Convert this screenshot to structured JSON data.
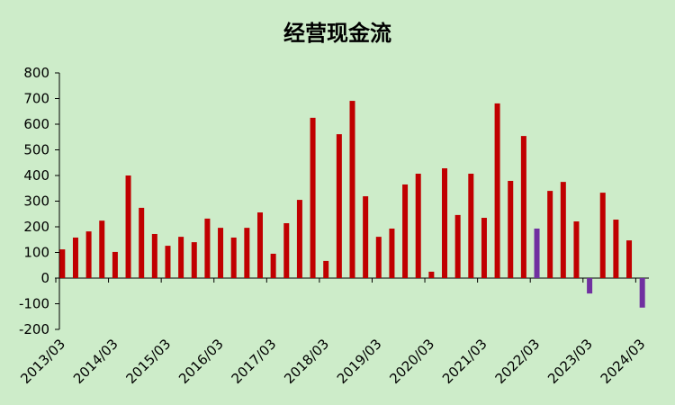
{
  "chart_data": {
    "type": "bar",
    "title": "经营现金流",
    "categories": [
      "2013/03",
      null,
      null,
      null,
      "2014/03",
      null,
      null,
      null,
      "2015/03",
      null,
      null,
      null,
      "2016/03",
      null,
      null,
      null,
      "2017/03",
      null,
      null,
      null,
      "2018/03",
      null,
      null,
      null,
      "2019/03",
      null,
      null,
      null,
      "2020/03",
      null,
      null,
      null,
      "2021/03",
      null,
      null,
      null,
      "2022/03",
      null,
      null,
      null,
      "2023/03",
      null,
      null,
      null,
      "2024/03"
    ],
    "values": [
      112,
      158,
      182,
      224,
      102,
      400,
      274,
      172,
      126,
      161,
      140,
      232,
      196,
      158,
      196,
      256,
      95,
      214,
      305,
      625,
      67,
      561,
      691,
      319,
      161,
      193,
      365,
      407,
      25,
      428,
      246,
      407,
      235,
      681,
      379,
      554,
      193,
      340,
      375,
      221,
      -60,
      333,
      228,
      147,
      -115
    ],
    "colors": [
      "#c00000",
      "#c00000",
      "#c00000",
      "#c00000",
      "#c00000",
      "#c00000",
      "#c00000",
      "#c00000",
      "#c00000",
      "#c00000",
      "#c00000",
      "#c00000",
      "#c00000",
      "#c00000",
      "#c00000",
      "#c00000",
      "#c00000",
      "#c00000",
      "#c00000",
      "#c00000",
      "#c00000",
      "#c00000",
      "#c00000",
      "#c00000",
      "#c00000",
      "#c00000",
      "#c00000",
      "#c00000",
      "#c00000",
      "#c00000",
      "#c00000",
      "#c00000",
      "#c00000",
      "#c00000",
      "#c00000",
      "#c00000",
      "#7030a0",
      "#c00000",
      "#c00000",
      "#c00000",
      "#7030a0",
      "#c00000",
      "#c00000",
      "#c00000",
      "#7030a0"
    ],
    "ylim": [
      -200,
      800
    ],
    "yticks": [
      -200,
      -100,
      0,
      100,
      200,
      300,
      400,
      500,
      600,
      700,
      800
    ],
    "grid": false
  }
}
